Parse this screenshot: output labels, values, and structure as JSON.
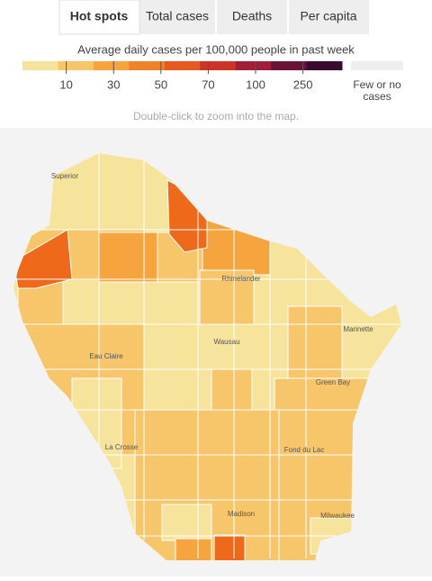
{
  "tabs": [
    "Hot spots",
    "Total cases",
    "Deaths",
    "Per capita"
  ],
  "legend": {
    "title": "Average daily cases per 100,000 people in past week",
    "colors": [
      "#f6e39c",
      "#f8c66a",
      "#f5a43e",
      "#f0822c",
      "#e65a22",
      "#cc3428",
      "#a11f36",
      "#6b1239",
      "#3a0b31"
    ],
    "ticks": [
      "10",
      "30",
      "50",
      "70",
      "100",
      "250"
    ],
    "no_data_label": [
      "Few or no",
      "cases"
    ],
    "no_data_color": "#eeeeee"
  },
  "hint": "Double-click to zoom into the map.",
  "cities": [
    "Superior",
    "Rhinelander",
    "Marinette",
    "Wausau",
    "Eau Claire",
    "Green Bay",
    "La Crosse",
    "Fond du Lac",
    "Madison",
    "Milwaukee"
  ]
}
